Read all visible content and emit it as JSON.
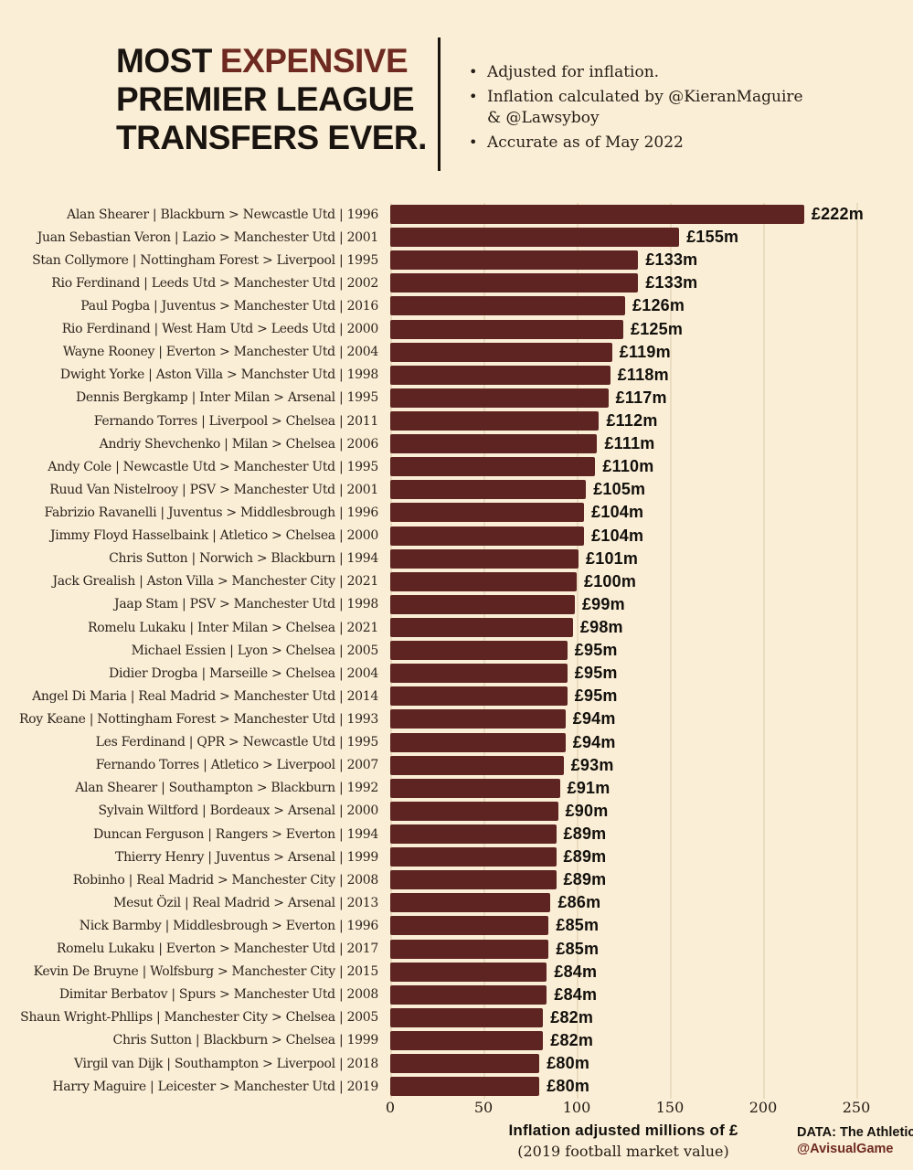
{
  "title": {
    "word1": "MOST",
    "word2": "EXPENSIVE",
    "line2": "PREMIER LEAGUE",
    "line3": "TRANSFERS EVER."
  },
  "notes": [
    "Adjusted for inflation.",
    "Inflation calculated by @KieranMaguire & @Lawsyboy",
    "Accurate as of May 2022"
  ],
  "footer": {
    "source": "DATA: The Athletic",
    "credit": "@AvisualGame"
  },
  "colors": {
    "background": "#fbeed6",
    "bar": "#5e2421",
    "accent": "#6e2a21",
    "text": "#1a1410",
    "grid": "#e9dcbf"
  },
  "chart_data": {
    "type": "bar",
    "orientation": "horizontal",
    "title": "MOST EXPENSIVE PREMIER LEAGUE TRANSFERS EVER.",
    "xlabel": "Inflation adjusted millions of £",
    "xlabel_note": "(2019 football market value)",
    "xlim": [
      0,
      250
    ],
    "xticks": [
      0,
      50,
      100,
      150,
      200,
      250
    ],
    "grid": "vertical",
    "legend": "none",
    "bars": [
      {
        "label": "Alan Shearer  |  Blackburn > Newcastle Utd  |  1996",
        "value": 222,
        "value_label": "£222m"
      },
      {
        "label": "Juan Sebastian Veron  |  Lazio > Manchester Utd  |  2001",
        "value": 155,
        "value_label": "£155m"
      },
      {
        "label": "Stan Collymore  |  Nottingham Forest > Liverpool  |  1995",
        "value": 133,
        "value_label": "£133m"
      },
      {
        "label": "Rio Ferdinand  |  Leeds Utd > Manchester Utd  |  2002",
        "value": 133,
        "value_label": "£133m"
      },
      {
        "label": "Paul Pogba  |  Juventus > Manchester Utd  |  2016",
        "value": 126,
        "value_label": "£126m"
      },
      {
        "label": "Rio Ferdinand  | West Ham Utd > Leeds Utd  |  2000",
        "value": 125,
        "value_label": "£125m"
      },
      {
        "label": "Wayne Rooney  |  Everton > Manchester Utd  |  2004",
        "value": 119,
        "value_label": "£119m"
      },
      {
        "label": "Dwight Yorke  |  Aston Villa > Manchster Utd  |  1998",
        "value": 118,
        "value_label": "£118m"
      },
      {
        "label": "Dennis Bergkamp  |  Inter Milan > Arsenal  |  1995",
        "value": 117,
        "value_label": "£117m"
      },
      {
        "label": "Fernando Torres  |  Liverpool > Chelsea  |  2011",
        "value": 112,
        "value_label": "£112m"
      },
      {
        "label": "Andriy Shevchenko  |  Milan > Chelsea  |  2006",
        "value": 111,
        "value_label": "£111m"
      },
      {
        "label": "Andy Cole  |  Newcastle Utd > Manchester Utd  |  1995",
        "value": 110,
        "value_label": "£110m"
      },
      {
        "label": "Ruud Van Nistelrooy  |  PSV > Manchester Utd  |  2001",
        "value": 105,
        "value_label": "£105m"
      },
      {
        "label": "Fabrizio Ravanelli  |  Juventus > Middlesbrough  |  1996",
        "value": 104,
        "value_label": "£104m"
      },
      {
        "label": "Jimmy Floyd Hasselbaink  |  Atletico > Chelsea  |  2000",
        "value": 104,
        "value_label": "£104m"
      },
      {
        "label": "Chris Sutton  |  Norwich > Blackburn  |  1994",
        "value": 101,
        "value_label": "£101m"
      },
      {
        "label": "Jack Grealish  |  Aston Villa > Manchester City  |  2021",
        "value": 100,
        "value_label": "£100m"
      },
      {
        "label": "Jaap Stam  |  PSV > Manchester Utd  |  1998",
        "value": 99,
        "value_label": "£99m"
      },
      {
        "label": "Romelu Lukaku  |  Inter Milan > Chelsea  |  2021",
        "value": 98,
        "value_label": "£98m"
      },
      {
        "label": "Michael Essien  |  Lyon > Chelsea  |  2005",
        "value": 95,
        "value_label": "£95m"
      },
      {
        "label": "Didier Drogba  |  Marseille > Chelsea  |  2004",
        "value": 95,
        "value_label": "£95m"
      },
      {
        "label": "Angel Di Maria  |  Real Madrid > Manchester Utd  |  2014",
        "value": 95,
        "value_label": "£95m"
      },
      {
        "label": "Roy Keane  |  Nottingham Forest > Manchester Utd  |  1993",
        "value": 94,
        "value_label": "£94m"
      },
      {
        "label": "Les Ferdinand  |  QPR > Newcastle Utd  |  1995",
        "value": 94,
        "value_label": "£94m"
      },
      {
        "label": "Fernando Torres  |  Atletico > Liverpool  |  2007",
        "value": 93,
        "value_label": "£93m"
      },
      {
        "label": "Alan Shearer  |  Southampton > Blackburn  |  1992",
        "value": 91,
        "value_label": "£91m"
      },
      {
        "label": "Sylvain Wiltford  |  Bordeaux > Arsenal  |  2000",
        "value": 90,
        "value_label": "£90m"
      },
      {
        "label": "Duncan Ferguson  |  Rangers > Everton  |  1994",
        "value": 89,
        "value_label": "£89m"
      },
      {
        "label": "Thierry Henry  |  Juventus > Arsenal  |  1999",
        "value": 89,
        "value_label": "£89m"
      },
      {
        "label": "Robinho  |  Real Madrid > Manchester City  |  2008",
        "value": 89,
        "value_label": "£89m"
      },
      {
        "label": "Mesut Özil  |  Real Madrid > Arsenal  |  2013",
        "value": 86,
        "value_label": "£86m"
      },
      {
        "label": "Nick Barmby  |  Middlesbrough > Everton  |  1996",
        "value": 85,
        "value_label": "£85m"
      },
      {
        "label": "Romelu Lukaku  |  Everton > Manchester Utd  |  2017",
        "value": 85,
        "value_label": "£85m"
      },
      {
        "label": "Kevin De Bruyne  |  Wolfsburg > Manchester City  |  2015",
        "value": 84,
        "value_label": "£84m"
      },
      {
        "label": "Dimitar Berbatov  |  Spurs > Manchester Utd  |  2008",
        "value": 84,
        "value_label": "£84m"
      },
      {
        "label": "Shaun Wright-Phllips  |  Manchester City > Chelsea |  2005",
        "value": 82,
        "value_label": "£82m"
      },
      {
        "label": "Chris Sutton  |  Blackburn > Chelsea  |  1999",
        "value": 82,
        "value_label": "£82m"
      },
      {
        "label": "Virgil van Dijk  |  Southampton > Liverpool  |  2018",
        "value": 80,
        "value_label": "£80m"
      },
      {
        "label": "Harry Maguire  |  Leicester > Manchester Utd  |  2019",
        "value": 80,
        "value_label": "£80m"
      }
    ]
  }
}
